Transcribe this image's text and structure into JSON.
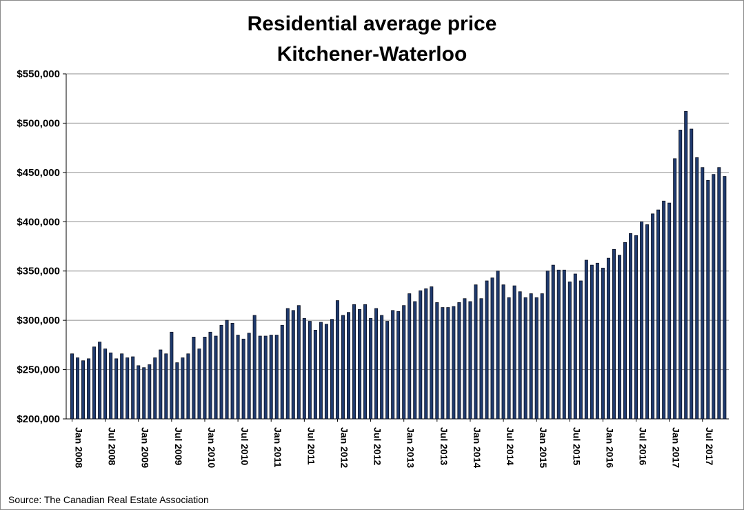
{
  "chart_data": {
    "type": "bar",
    "title": "Residential average price",
    "subtitle": "Kitchener-Waterloo",
    "ylim": [
      200000,
      550000
    ],
    "y_ticks": [
      "$200,000",
      "$250,000",
      "$300,000",
      "$350,000",
      "$400,000",
      "$450,000",
      "$500,000",
      "$550,000"
    ],
    "x_tick_labels": [
      "Jan 2008",
      "Jul 2008",
      "Jan 2009",
      "Jul 2009",
      "Jan 2010",
      "Jul 2010",
      "Jan 2011",
      "Jul 2011",
      "Jan 2012",
      "Jul 2012",
      "Jan 2013",
      "Jul 2013",
      "Jan 2014",
      "Jul 2014",
      "Jan 2015",
      "Jul 2015",
      "Jan 2016",
      "Jul 2016",
      "Jan 2017",
      "Jul 2017"
    ],
    "grid": true,
    "bar_color": "#1f3a6e",
    "values": [
      266000,
      262000,
      259000,
      261000,
      273000,
      278000,
      271000,
      267000,
      261000,
      266000,
      262000,
      263000,
      254000,
      252000,
      255000,
      262000,
      270000,
      266000,
      288000,
      257000,
      262000,
      266000,
      283000,
      271000,
      283000,
      288000,
      284000,
      295000,
      300000,
      297000,
      285000,
      281000,
      287000,
      305000,
      284000,
      284000,
      285000,
      285000,
      295000,
      312000,
      310000,
      315000,
      302000,
      299000,
      290000,
      298000,
      296000,
      301000,
      320000,
      305000,
      308000,
      316000,
      311000,
      316000,
      302000,
      312000,
      305000,
      299000,
      310000,
      309000,
      315000,
      327000,
      319000,
      330000,
      332000,
      334000,
      318000,
      313000,
      313000,
      314000,
      318000,
      322000,
      319000,
      336000,
      322000,
      340000,
      343000,
      350000,
      336000,
      323000,
      335000,
      329000,
      323000,
      327000,
      323000,
      327000,
      350000,
      356000,
      351000,
      351000,
      339000,
      347000,
      340000,
      361000,
      356000,
      358000,
      353000,
      363000,
      372000,
      366000,
      379000,
      388000,
      386000,
      400000,
      397000,
      408000,
      412000,
      421000,
      419000,
      464000,
      493000,
      512000,
      494000,
      465000,
      455000,
      442000,
      448000,
      455000,
      446000
    ]
  },
  "footer": {
    "source": "Source: The Canadian Real Estate Association"
  }
}
